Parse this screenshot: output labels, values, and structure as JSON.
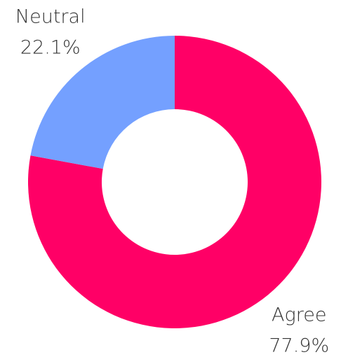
{
  "chart_data": {
    "type": "donut",
    "categories": [
      "Agree",
      "Neutral"
    ],
    "values": [
      77.9,
      22.1
    ],
    "value_labels": [
      "77.9%",
      "22.1%"
    ],
    "colors": [
      "#ff0066",
      "#74a0ff"
    ]
  }
}
